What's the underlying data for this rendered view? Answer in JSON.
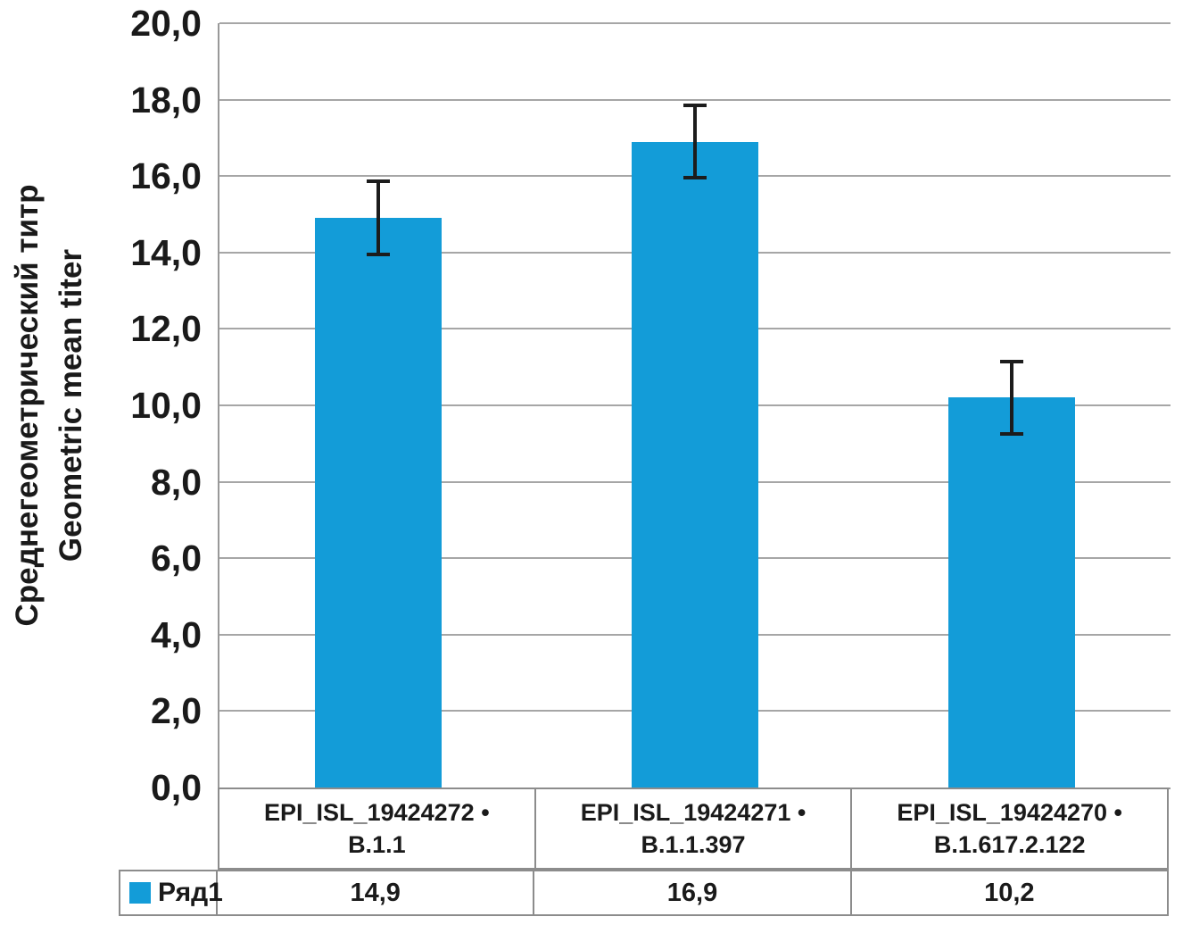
{
  "chart_data": {
    "type": "bar",
    "title": "",
    "ylabel_lines": [
      "Среднегеометрический титр",
      "Geometric mean titer"
    ],
    "ylim": [
      0,
      20
    ],
    "ytick_step": 2,
    "yticks": [
      "20,0",
      "18,0",
      "16,0",
      "14,0",
      "12,0",
      "10,0",
      "8,0",
      "6,0",
      "4,0",
      "2,0",
      "0,0"
    ],
    "categories": [
      {
        "line1": "EPI_ISL_19424272 •",
        "line2": "B.1.1"
      },
      {
        "line1": "EPI_ISL_19424271 •",
        "line2": "B.1.1.397"
      },
      {
        "line1": "EPI_ISL_19424270 •",
        "line2": "B.1.617.2.122"
      }
    ],
    "series": [
      {
        "name": "Ряд1",
        "values": [
          14.9,
          16.9,
          10.2
        ],
        "display_values": [
          "14,9",
          "16,9",
          "10,2"
        ],
        "error_plus_minus": [
          1.0,
          1.0,
          1.0
        ]
      }
    ],
    "grid": "horizontal",
    "legend_position": "bottom-table",
    "colors": {
      "bar": "#139CD8",
      "gridline": "#A6A6A6",
      "axis": "#999999",
      "table_border": "#8C8C8C",
      "error_bar": "#1C1C1C",
      "text": "#1A1A1A"
    }
  }
}
